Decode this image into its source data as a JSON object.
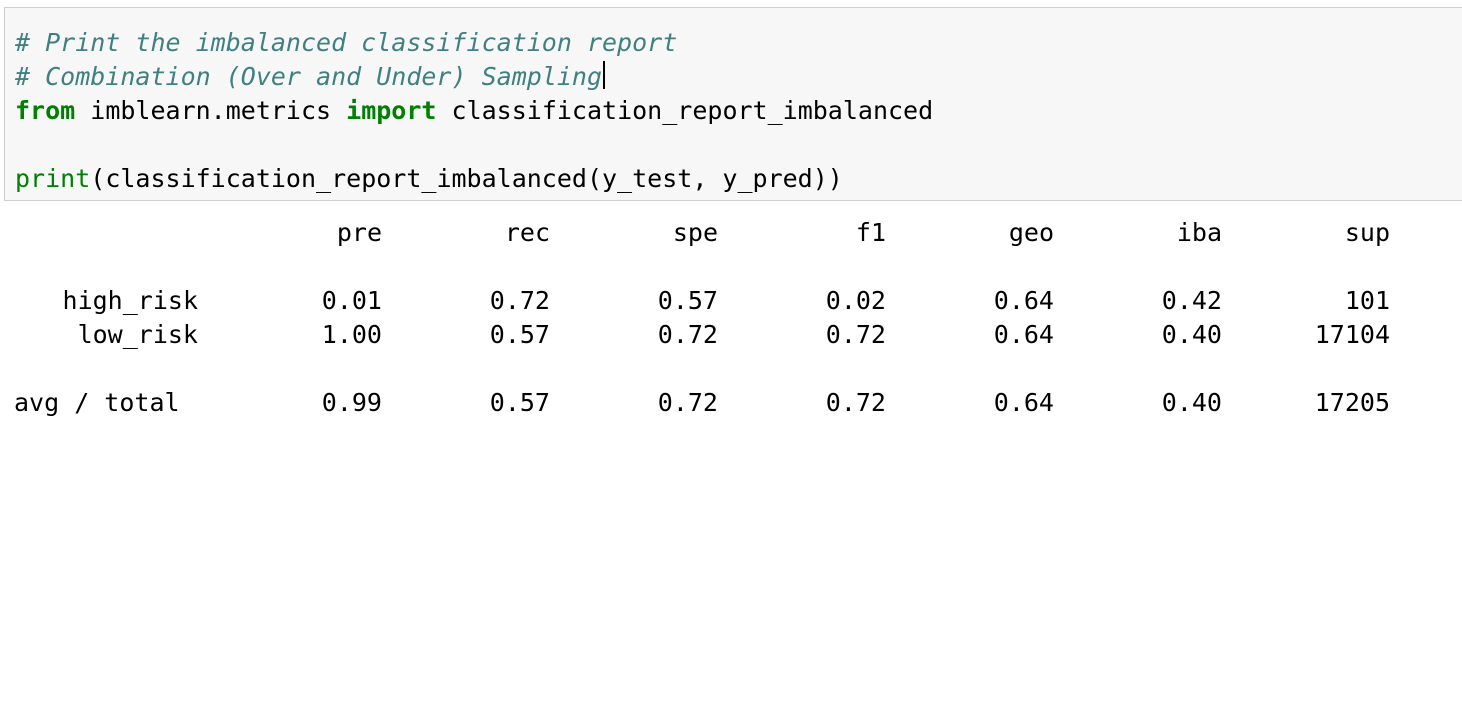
{
  "code": {
    "comment1": "# Print the imbalanced classification report",
    "comment2": "# Combination (Over and Under) Sampling",
    "kw_from": "from",
    "module": " imblearn.metrics ",
    "kw_import": "import",
    "imported_name": " classification_report_imbalanced",
    "builtin_print": "print",
    "call_args": "(classification_report_imbalanced(y_test, y_pred))"
  },
  "report": {
    "headers": [
      "",
      "pre",
      "rec",
      "spe",
      "f1",
      "geo",
      "iba",
      "sup"
    ],
    "rows": [
      [
        "high_risk",
        "0.01",
        "0.72",
        "0.57",
        "0.02",
        "0.64",
        "0.42",
        "101"
      ],
      [
        "low_risk",
        "1.00",
        "0.57",
        "0.72",
        "0.72",
        "0.64",
        "0.40",
        "17104"
      ]
    ],
    "total_row": [
      "avg / total",
      "0.99",
      "0.57",
      "0.72",
      "0.72",
      "0.64",
      "0.40",
      "17205"
    ]
  }
}
